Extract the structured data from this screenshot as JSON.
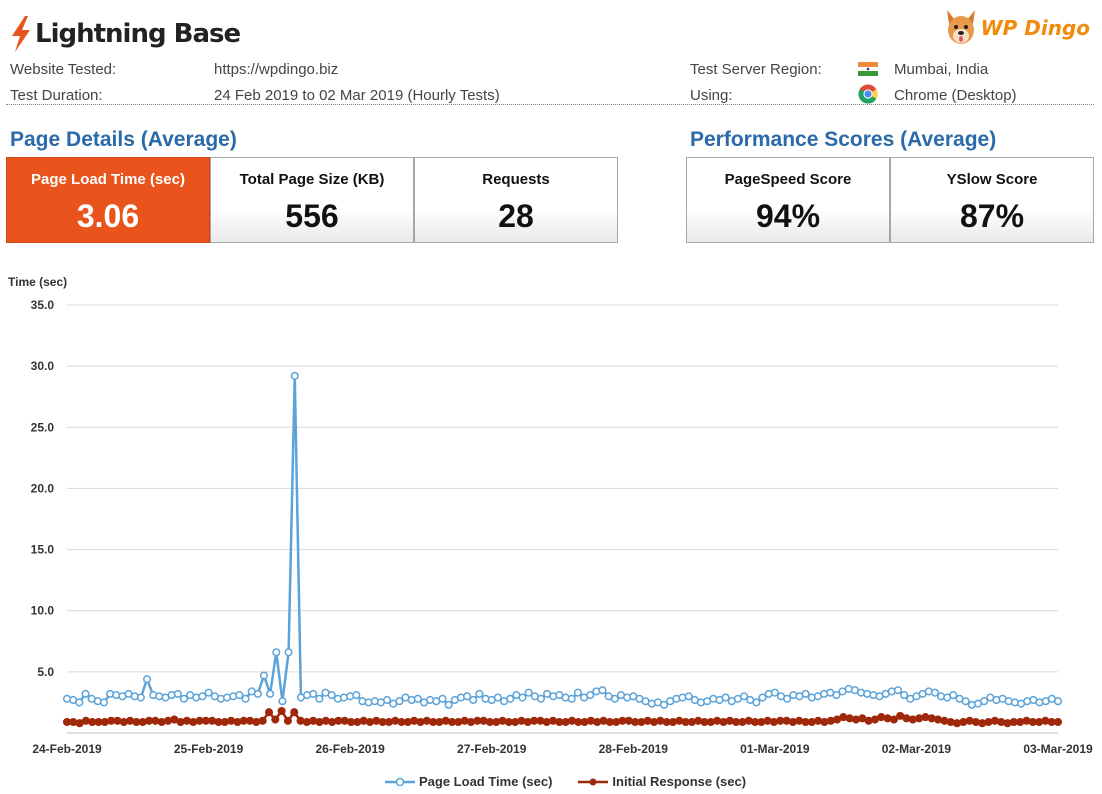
{
  "header": {
    "brand": "Lightning Base",
    "partner_brand": "WP Dingo",
    "website_label": "Website Tested:",
    "website_value": "https://wpdingo.biz",
    "duration_label": "Test Duration:",
    "duration_value": "24 Feb 2019 to 02 Mar 2019 (Hourly Tests)",
    "region_label": "Test Server Region:",
    "region_value": "Mumbai, India",
    "using_label": "Using:",
    "using_value": "Chrome (Desktop)"
  },
  "page_details": {
    "title": "Page Details (Average)",
    "load_time_label": "Page Load Time (sec)",
    "load_time_value": "3.06",
    "size_label": "Total Page Size (KB)",
    "size_value": "556",
    "requests_label": "Requests",
    "requests_value": "28"
  },
  "performance": {
    "title": "Performance Scores (Average)",
    "pagespeed_label": "PageSpeed Score",
    "pagespeed_value": "94%",
    "yslow_label": "YSlow Score",
    "yslow_value": "87%"
  },
  "colors": {
    "accent_orange": "#e8541c",
    "title_blue": "#2a6aa8",
    "series_load": "#5ba3d9",
    "series_response": "#a0280a"
  },
  "chart_data": {
    "type": "line",
    "title": "",
    "ylabel": "Time (sec)",
    "xlabel": "",
    "ylim": [
      0,
      35
    ],
    "yticks": [
      "5.0",
      "10.0",
      "15.0",
      "20.0",
      "25.0",
      "30.0",
      "35.0"
    ],
    "ytick_values": [
      5,
      10,
      15,
      20,
      25,
      30,
      35
    ],
    "x_ticks": [
      "24-Feb-2019",
      "25-Feb-2019",
      "26-Feb-2019",
      "27-Feb-2019",
      "28-Feb-2019",
      "01-Mar-2019",
      "02-Mar-2019",
      "03-Mar-2019"
    ],
    "x_range_days": [
      0,
      7
    ],
    "grid": true,
    "legend_position": "bottom",
    "series": [
      {
        "name": "Page Load Time (sec)",
        "marker": "circle-open",
        "values": [
          2.8,
          2.7,
          2.5,
          3.2,
          2.8,
          2.6,
          2.5,
          3.2,
          3.1,
          3.0,
          3.2,
          3.0,
          2.9,
          4.4,
          3.1,
          3.0,
          2.9,
          3.1,
          3.2,
          2.8,
          3.1,
          2.9,
          3.0,
          3.3,
          3.0,
          2.8,
          2.9,
          3.0,
          3.1,
          2.8,
          3.4,
          3.2,
          4.7,
          3.2,
          6.6,
          2.6,
          6.6,
          29.2,
          2.9,
          3.1,
          3.2,
          2.8,
          3.3,
          3.1,
          2.8,
          2.9,
          3.0,
          3.1,
          2.6,
          2.5,
          2.6,
          2.5,
          2.7,
          2.4,
          2.6,
          2.9,
          2.7,
          2.8,
          2.5,
          2.7,
          2.6,
          2.8,
          2.3,
          2.7,
          2.9,
          3.0,
          2.7,
          3.2,
          2.8,
          2.7,
          2.9,
          2.6,
          2.8,
          3.1,
          2.9,
          3.3,
          3.0,
          2.8,
          3.2,
          3.0,
          3.1,
          2.9,
          2.8,
          3.3,
          2.9,
          3.1,
          3.4,
          3.5,
          3.0,
          2.8,
          3.1,
          2.9,
          3.0,
          2.8,
          2.6,
          2.4,
          2.5,
          2.3,
          2.6,
          2.8,
          2.9,
          3.0,
          2.7,
          2.5,
          2.6,
          2.8,
          2.7,
          2.9,
          2.6,
          2.8,
          3.0,
          2.7,
          2.5,
          2.9,
          3.2,
          3.3,
          3.0,
          2.8,
          3.1,
          3.0,
          3.2,
          2.9,
          3.0,
          3.2,
          3.3,
          3.1,
          3.4,
          3.6,
          3.5,
          3.3,
          3.2,
          3.1,
          3.0,
          3.2,
          3.4,
          3.5,
          3.1,
          2.8,
          3.0,
          3.2,
          3.4,
          3.3,
          3.0,
          2.9,
          3.1,
          2.8,
          2.6,
          2.3,
          2.4,
          2.6,
          2.9,
          2.7,
          2.8,
          2.6,
          2.5,
          2.4,
          2.6,
          2.7,
          2.5,
          2.6,
          2.8,
          2.6
        ]
      },
      {
        "name": "Initial Response (sec)",
        "marker": "circle-filled",
        "values": [
          0.9,
          0.9,
          0.8,
          1.0,
          0.9,
          0.9,
          0.9,
          1.0,
          1.0,
          0.9,
          1.0,
          0.9,
          0.9,
          1.0,
          1.0,
          0.9,
          1.0,
          1.1,
          0.9,
          1.0,
          0.9,
          1.0,
          1.0,
          1.0,
          0.9,
          0.9,
          1.0,
          0.9,
          1.0,
          1.0,
          0.9,
          1.0,
          1.7,
          1.1,
          1.8,
          1.0,
          1.7,
          1.0,
          0.9,
          1.0,
          0.9,
          1.0,
          0.9,
          1.0,
          1.0,
          0.9,
          0.9,
          1.0,
          0.9,
          1.0,
          0.9,
          0.9,
          1.0,
          0.9,
          0.9,
          1.0,
          0.9,
          1.0,
          0.9,
          0.9,
          1.0,
          0.9,
          0.9,
          1.0,
          0.9,
          1.0,
          1.0,
          0.9,
          0.9,
          1.0,
          0.9,
          0.9,
          1.0,
          0.9,
          1.0,
          1.0,
          0.9,
          1.0,
          0.9,
          0.9,
          1.0,
          0.9,
          0.9,
          1.0,
          0.9,
          1.0,
          0.9,
          0.9,
          1.0,
          1.0,
          0.9,
          0.9,
          1.0,
          0.9,
          1.0,
          0.9,
          0.9,
          1.0,
          0.9,
          0.9,
          1.0,
          0.9,
          0.9,
          1.0,
          0.9,
          1.0,
          0.9,
          0.9,
          1.0,
          0.9,
          0.9,
          1.0,
          0.9,
          1.0,
          1.0,
          0.9,
          1.0,
          0.9,
          0.9,
          1.0,
          0.9,
          1.0,
          1.1,
          1.3,
          1.2,
          1.1,
          1.2,
          1.0,
          1.1,
          1.3,
          1.2,
          1.1,
          1.4,
          1.2,
          1.1,
          1.2,
          1.3,
          1.2,
          1.1,
          1.0,
          0.9,
          0.8,
          0.9,
          1.0,
          0.9,
          0.8,
          0.9,
          1.0,
          0.9,
          0.8,
          0.9,
          0.9,
          1.0,
          0.9,
          0.9,
          1.0,
          0.9,
          0.9
        ]
      }
    ]
  }
}
